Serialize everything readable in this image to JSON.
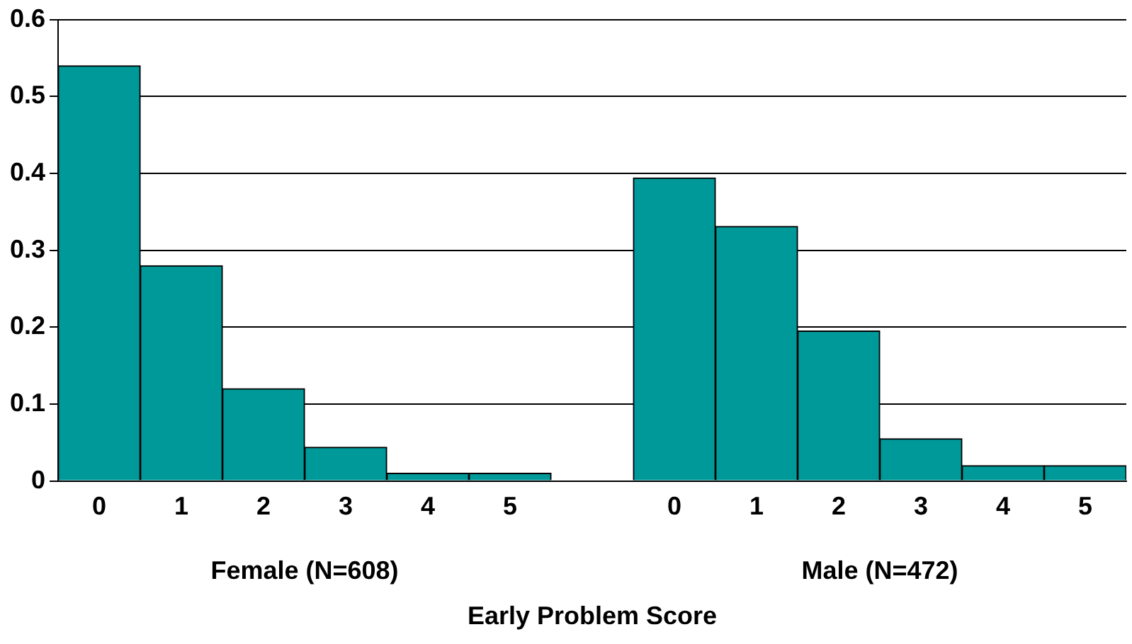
{
  "chart_data": {
    "type": "bar",
    "categories": [
      "0",
      "1",
      "2",
      "3",
      "4",
      "5",
      null,
      "0",
      "1",
      "2",
      "3",
      "4",
      "5"
    ],
    "values": [
      0.54,
      0.28,
      0.12,
      0.044,
      0.01,
      0.01,
      null,
      0.394,
      0.331,
      0.195,
      0.055,
      0.02,
      0.02
    ],
    "color": "#009999",
    "xlabel": "Early Problem Score",
    "annotations": [
      "Female (N=608)",
      "Male (N=472)"
    ],
    "ylim": [
      0,
      0.6
    ],
    "yticks": [
      0,
      0.1,
      0.2,
      0.3,
      0.4,
      0.5,
      0.6
    ],
    "grid": "y",
    "legend": false
  }
}
